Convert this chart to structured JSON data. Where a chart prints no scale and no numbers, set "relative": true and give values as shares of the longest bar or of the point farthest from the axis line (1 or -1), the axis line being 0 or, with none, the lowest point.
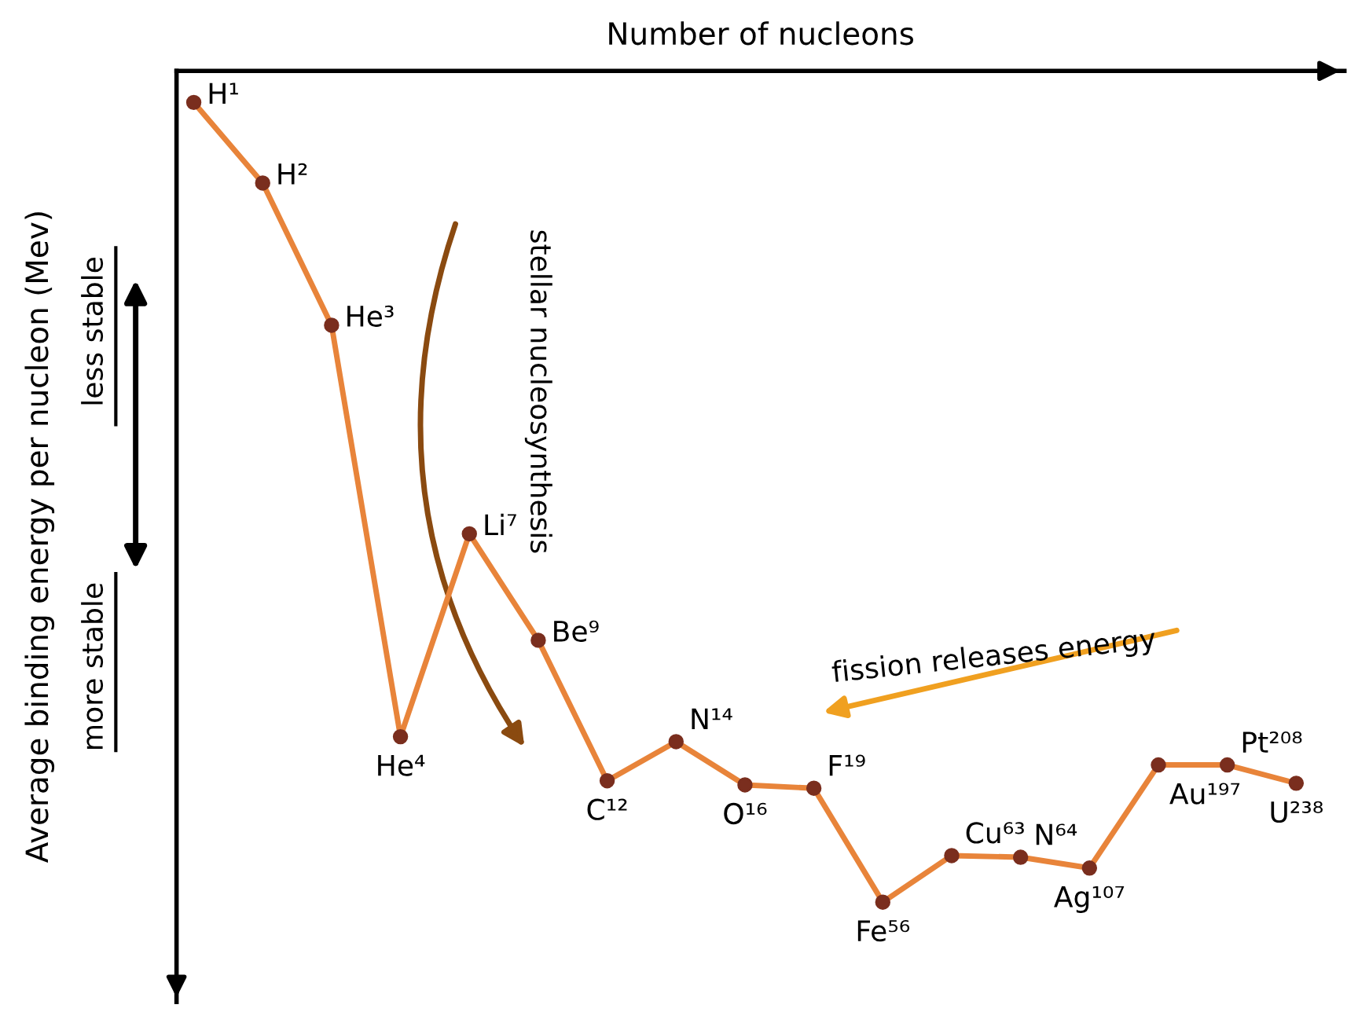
{
  "chart_data": {
    "type": "line",
    "relative": true,
    "xlabel": "Number of nucleons",
    "ylabel": "Average binding energy per nucleon (Mev)",
    "categories": [
      null,
      null,
      null,
      null,
      null,
      null,
      null,
      null,
      null,
      null,
      null,
      null,
      null,
      null,
      null,
      null,
      null
    ],
    "series": [
      {
        "color": "#e8843a",
        "values": [
          -0.038,
          -0.135,
          -0.306,
          -0.801,
          -0.557,
          -0.685,
          -0.854,
          -0.807,
          -0.859,
          -0.863,
          -1,
          -0.944,
          -0.946,
          -0.959,
          -0.835,
          -0.835,
          -0.857
        ]
      }
    ],
    "marker": "circle",
    "line_style": "solid",
    "annotations": [
      "H¹",
      "H²",
      "He³",
      "He⁴",
      "Li⁷",
      "Be⁹",
      "C¹²",
      "N¹⁴",
      "O¹⁶",
      "F¹⁹",
      "Fe⁵⁶",
      "Cu⁶³",
      "N⁶⁴",
      "Ag¹⁰⁷",
      "Au¹⁹⁷",
      "Pt²⁰⁸",
      "U²³⁸",
      "stellar nucleosynthesis",
      "fission releases energy",
      "less stable",
      "more stable"
    ]
  }
}
